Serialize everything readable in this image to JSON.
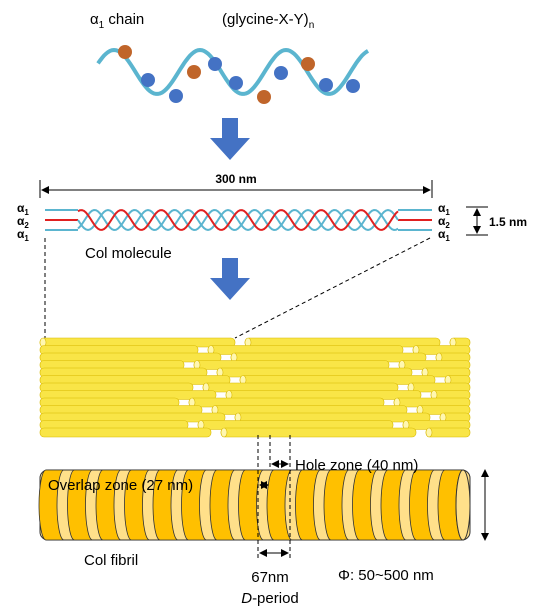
{
  "chain": {
    "symbol": "α",
    "symbol_sub": "1",
    "label_rest": " chain",
    "formula": "(glycine-X-Y)",
    "formula_sub": "n"
  },
  "molecule": {
    "length": "300 nm",
    "width": "1.5 nm",
    "name": "Col molecule",
    "left_strands": [
      {
        "symbol": "α",
        "sub": "1"
      },
      {
        "symbol": "α",
        "sub": "2"
      },
      {
        "symbol": "α",
        "sub": "1"
      }
    ],
    "right_strands": [
      {
        "symbol": "α",
        "sub": "1"
      },
      {
        "symbol": "α",
        "sub": "2"
      },
      {
        "symbol": "α",
        "sub": "1"
      }
    ]
  },
  "fibril": {
    "hole_zone": "Hole zone (40 nm)",
    "overlap_zone": "Overlap zone (27 nm)",
    "name": "Col fibril",
    "period": "67nm",
    "period_italic": "D",
    "period_rest": "-period",
    "diameter": "Φ: 50~500 nm"
  }
}
